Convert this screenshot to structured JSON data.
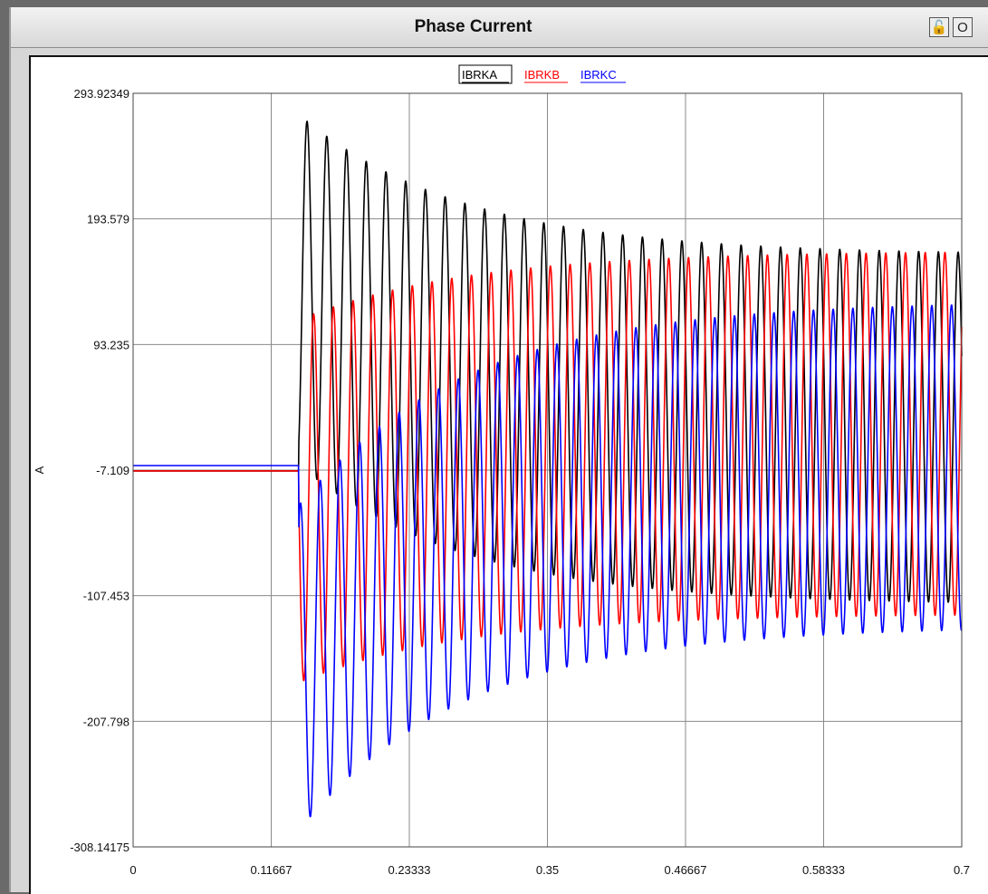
{
  "window": {
    "title": "Phase Current",
    "buttons": [
      {
        "name": "lock-icon",
        "glyph": "🔓"
      },
      {
        "name": "circle-icon",
        "glyph": "O"
      }
    ]
  },
  "chart_data": {
    "type": "line",
    "title": "Phase Current",
    "xlabel": "",
    "ylabel": "A",
    "xlim": [
      0,
      0.7
    ],
    "ylim": [
      -308.14175,
      293.92349
    ],
    "x_ticks": [
      "0",
      "0.11667",
      "0.23333",
      "0.35",
      "0.46667",
      "0.58333",
      "0.7"
    ],
    "x_tick_values": [
      0,
      0.11667,
      0.23333,
      0.35,
      0.46667,
      0.58333,
      0.7
    ],
    "y_ticks": [
      "293.92349",
      "193.579",
      "93.235",
      "-7.109",
      "-107.453",
      "-207.798",
      "-308.14175"
    ],
    "y_tick_values": [
      293.92349,
      193.579,
      93.235,
      -7.109,
      -107.453,
      -207.798,
      -308.14175
    ],
    "grid": true,
    "legend_position": "top-center",
    "fault_time": 0.14,
    "frequency_hz": 60,
    "series": [
      {
        "name": "IBRKA",
        "color": "#000000",
        "pre_fault_value": -7.8,
        "phase_deg": -60,
        "steady_amplitude": 140,
        "initial_offset": 137,
        "offset_decay_tau": 0.14,
        "steady_offset": 25
      },
      {
        "name": "IBRKB",
        "color": "#ff0000",
        "pre_fault_value": -7.8,
        "phase_deg": -180,
        "steady_amplitude": 145,
        "initial_offset": -32,
        "offset_decay_tau": 0.14,
        "steady_offset": 23
      },
      {
        "name": "IBRKC",
        "color": "#0000ff",
        "pre_fault_value": -3.5,
        "phase_deg": 60,
        "steady_amplitude": 130,
        "initial_offset": -165,
        "offset_decay_tau": 0.14,
        "steady_offset": -2
      }
    ]
  }
}
